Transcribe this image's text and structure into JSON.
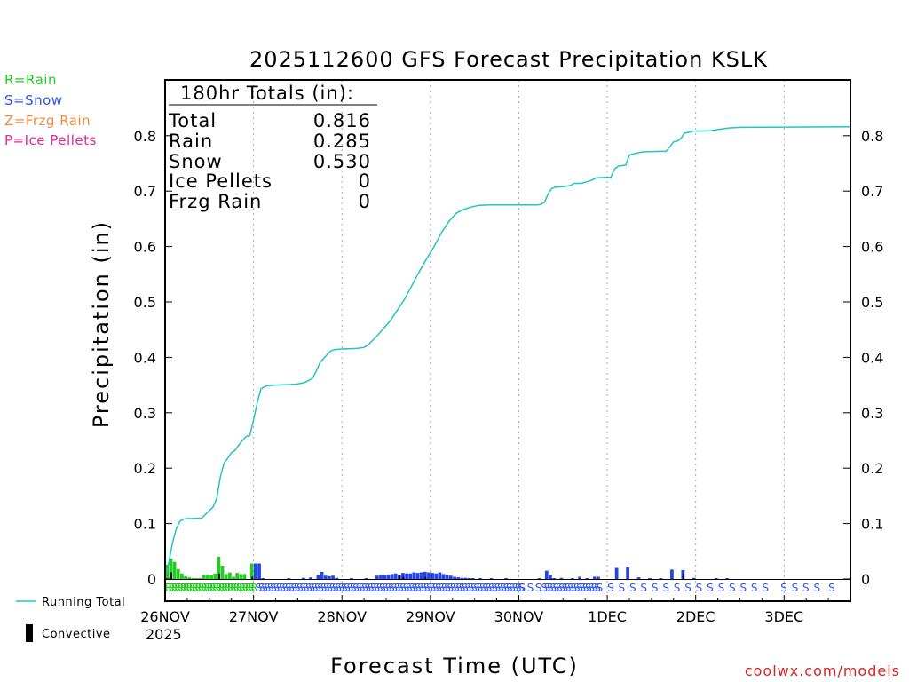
{
  "chart_data": {
    "type": "bar",
    "title": "2025112600 GFS Forecast Precipitation KSLK",
    "xlabel": "Forecast Time (UTC)",
    "ylabel": "Precipitation (in)",
    "ylim": [
      0,
      0.9
    ],
    "yticks": [
      0,
      0.1,
      0.2,
      0.3,
      0.4,
      0.5,
      0.6,
      0.7,
      0.8
    ],
    "ytick_labels": [
      "0",
      "0.1",
      "0.2",
      "0.3",
      "0.4",
      "0.5",
      "0.6",
      "0.7",
      "0.8"
    ],
    "xlim_hours": [
      0,
      186
    ],
    "xticks": [
      {
        "hour": 0,
        "label": "26NOV"
      },
      {
        "hour": 24,
        "label": "27NOV"
      },
      {
        "hour": 48,
        "label": "28NOV"
      },
      {
        "hour": 72,
        "label": "29NOV"
      },
      {
        "hour": 96,
        "label": "30NOV"
      },
      {
        "hour": 120,
        "label": "1DEC"
      },
      {
        "hour": 144,
        "label": "2DEC"
      },
      {
        "hour": 168,
        "label": "3DEC"
      }
    ],
    "year_label": "2025",
    "totals": {
      "header": "180hr Totals (in):",
      "rows": [
        {
          "label": "Total",
          "value": "0.816"
        },
        {
          "label": "Rain",
          "value": "0.285"
        },
        {
          "label": "Snow",
          "value": "0.530"
        },
        {
          "label": "Ice Pellets",
          "value": "0"
        },
        {
          "label": "Frzg Rain",
          "value": "0"
        }
      ]
    },
    "type_legend": [
      {
        "text": "R=Rain",
        "color": "#22cc22"
      },
      {
        "text": "S=Snow",
        "color": "#3355ee"
      },
      {
        "text": "Z=Frzg Rain",
        "color": "#f08c3c"
      },
      {
        "text": "P=Ice Pellets",
        "color": "#ee2299"
      }
    ],
    "series_legend": {
      "running_total": "Running Total",
      "convective": "Convective"
    },
    "colors": {
      "rain": "#22cc22",
      "snow": "#2244ee",
      "running_total": "#22c4c4",
      "convective": "#000000",
      "grid": "#aaaaaa"
    },
    "bars": [
      {
        "h": 1,
        "v": 0.026,
        "t": "R"
      },
      {
        "h": 2,
        "v": 0.037,
        "t": "R"
      },
      {
        "h": 3,
        "v": 0.031,
        "t": "R"
      },
      {
        "h": 4,
        "v": 0.018,
        "t": "R"
      },
      {
        "h": 5,
        "v": 0.01,
        "t": "R"
      },
      {
        "h": 6,
        "v": 0.005,
        "t": "R"
      },
      {
        "h": 7,
        "v": 0.003,
        "t": "R"
      },
      {
        "h": 8,
        "v": 0.001,
        "t": "R"
      },
      {
        "h": 9,
        "v": 0.001,
        "t": "R"
      },
      {
        "h": 10,
        "v": 0.001,
        "t": "R"
      },
      {
        "h": 11,
        "v": 0.007,
        "t": "R"
      },
      {
        "h": 12,
        "v": 0.008,
        "t": "R"
      },
      {
        "h": 13,
        "v": 0.007,
        "t": "R"
      },
      {
        "h": 14,
        "v": 0.01,
        "t": "R"
      },
      {
        "h": 15,
        "v": 0.04,
        "t": "R"
      },
      {
        "h": 16,
        "v": 0.024,
        "t": "R"
      },
      {
        "h": 17,
        "v": 0.009,
        "t": "R"
      },
      {
        "h": 18,
        "v": 0.012,
        "t": "R"
      },
      {
        "h": 19,
        "v": 0.004,
        "t": "R"
      },
      {
        "h": 20,
        "v": 0.011,
        "t": "R"
      },
      {
        "h": 21,
        "v": 0.009,
        "t": "R"
      },
      {
        "h": 22,
        "v": 0.009,
        "t": "R"
      },
      {
        "h": 24,
        "v": 0.028,
        "t": "R"
      },
      {
        "h": 25,
        "v": 0.028,
        "t": "S"
      },
      {
        "h": 26,
        "v": 0.028,
        "t": "S"
      },
      {
        "h": 27,
        "v": 0.001,
        "t": "S"
      },
      {
        "h": 34,
        "v": 0.001,
        "t": "S"
      },
      {
        "h": 38,
        "v": 0.002,
        "t": "S"
      },
      {
        "h": 40,
        "v": 0.003,
        "t": "S"
      },
      {
        "h": 42,
        "v": 0.008,
        "t": "S"
      },
      {
        "h": 43,
        "v": 0.013,
        "t": "S"
      },
      {
        "h": 44,
        "v": 0.006,
        "t": "S"
      },
      {
        "h": 45,
        "v": 0.005,
        "t": "S"
      },
      {
        "h": 46,
        "v": 0.006,
        "t": "S"
      },
      {
        "h": 47,
        "v": 0.002,
        "t": "S"
      },
      {
        "h": 51,
        "v": 0.001,
        "t": "S"
      },
      {
        "h": 55,
        "v": 0.001,
        "t": "S"
      },
      {
        "h": 58,
        "v": 0.006,
        "t": "S"
      },
      {
        "h": 59,
        "v": 0.007,
        "t": "S"
      },
      {
        "h": 60,
        "v": 0.007,
        "t": "S"
      },
      {
        "h": 61,
        "v": 0.008,
        "t": "S"
      },
      {
        "h": 62,
        "v": 0.009,
        "t": "S"
      },
      {
        "h": 63,
        "v": 0.01,
        "t": "S"
      },
      {
        "h": 64,
        "v": 0.008,
        "t": "S"
      },
      {
        "h": 65,
        "v": 0.011,
        "t": "S"
      },
      {
        "h": 66,
        "v": 0.01,
        "t": "S"
      },
      {
        "h": 67,
        "v": 0.01,
        "t": "S"
      },
      {
        "h": 68,
        "v": 0.012,
        "t": "S"
      },
      {
        "h": 69,
        "v": 0.011,
        "t": "S"
      },
      {
        "h": 70,
        "v": 0.012,
        "t": "S"
      },
      {
        "h": 71,
        "v": 0.013,
        "t": "S"
      },
      {
        "h": 72,
        "v": 0.012,
        "t": "S"
      },
      {
        "h": 73,
        "v": 0.011,
        "t": "S"
      },
      {
        "h": 74,
        "v": 0.01,
        "t": "S"
      },
      {
        "h": 75,
        "v": 0.012,
        "t": "S"
      },
      {
        "h": 76,
        "v": 0.009,
        "t": "S"
      },
      {
        "h": 77,
        "v": 0.007,
        "t": "S"
      },
      {
        "h": 78,
        "v": 0.006,
        "t": "S"
      },
      {
        "h": 79,
        "v": 0.004,
        "t": "S"
      },
      {
        "h": 80,
        "v": 0.003,
        "t": "S"
      },
      {
        "h": 81,
        "v": 0.002,
        "t": "S"
      },
      {
        "h": 82,
        "v": 0.002,
        "t": "S"
      },
      {
        "h": 83,
        "v": 0.001,
        "t": "S"
      },
      {
        "h": 84,
        "v": 0.001,
        "t": "S"
      },
      {
        "h": 86,
        "v": 0.001,
        "t": "S"
      },
      {
        "h": 89,
        "v": 0.001,
        "t": "S"
      },
      {
        "h": 93,
        "v": 0.001,
        "t": "S"
      },
      {
        "h": 102,
        "v": 0.001,
        "t": "S"
      },
      {
        "h": 104,
        "v": 0.015,
        "t": "S"
      },
      {
        "h": 105,
        "v": 0.007,
        "t": "S"
      },
      {
        "h": 106,
        "v": 0.001,
        "t": "S"
      },
      {
        "h": 108,
        "v": 0.002,
        "t": "S"
      },
      {
        "h": 111,
        "v": 0.001,
        "t": "S"
      },
      {
        "h": 113,
        "v": 0.004,
        "t": "S"
      },
      {
        "h": 115,
        "v": 0.001,
        "t": "S"
      },
      {
        "h": 117,
        "v": 0.004,
        "t": "S"
      },
      {
        "h": 118,
        "v": 0.004,
        "t": "S"
      },
      {
        "h": 123,
        "v": 0.02,
        "t": "S"
      },
      {
        "h": 126,
        "v": 0.021,
        "t": "S"
      },
      {
        "h": 129,
        "v": 0.003,
        "t": "S"
      },
      {
        "h": 132,
        "v": 0.001,
        "t": "S"
      },
      {
        "h": 135,
        "v": 0.001,
        "t": "S"
      },
      {
        "h": 138,
        "v": 0.017,
        "t": "S"
      },
      {
        "h": 141,
        "v": 0.016,
        "t": "S"
      },
      {
        "h": 144,
        "v": 0.002,
        "t": "S"
      },
      {
        "h": 150,
        "v": 0.001,
        "t": "S"
      },
      {
        "h": 153,
        "v": 0.001,
        "t": "S"
      }
    ],
    "convective": [
      {
        "h": 2,
        "v": 0.012
      },
      {
        "h": 15,
        "v": 0.01
      },
      {
        "h": 24,
        "v": 0.004
      },
      {
        "h": 64,
        "v": 0.006
      },
      {
        "h": 65,
        "v": 0.004
      },
      {
        "h": 71,
        "v": 0.004
      },
      {
        "h": 141,
        "v": 0.01
      }
    ],
    "running_total": [
      [
        0,
        0
      ],
      [
        1,
        0.03
      ],
      [
        2,
        0.065
      ],
      [
        3,
        0.09
      ],
      [
        4,
        0.104
      ],
      [
        5,
        0.108
      ],
      [
        6,
        0.109
      ],
      [
        7,
        0.109
      ],
      [
        10,
        0.11
      ],
      [
        11,
        0.117
      ],
      [
        13,
        0.13
      ],
      [
        14,
        0.145
      ],
      [
        15,
        0.185
      ],
      [
        16,
        0.209
      ],
      [
        17,
        0.218
      ],
      [
        18,
        0.228
      ],
      [
        19,
        0.232
      ],
      [
        20,
        0.242
      ],
      [
        21,
        0.25
      ],
      [
        22,
        0.257
      ],
      [
        23,
        0.259
      ],
      [
        24,
        0.287
      ],
      [
        25,
        0.318
      ],
      [
        26,
        0.343
      ],
      [
        27,
        0.347
      ],
      [
        28,
        0.349
      ],
      [
        30,
        0.35
      ],
      [
        34,
        0.351
      ],
      [
        36,
        0.352
      ],
      [
        38,
        0.355
      ],
      [
        40,
        0.362
      ],
      [
        41,
        0.375
      ],
      [
        42,
        0.39
      ],
      [
        43,
        0.398
      ],
      [
        44,
        0.405
      ],
      [
        45,
        0.412
      ],
      [
        46,
        0.414
      ],
      [
        48,
        0.415
      ],
      [
        52,
        0.416
      ],
      [
        54,
        0.418
      ],
      [
        55,
        0.422
      ],
      [
        57,
        0.435
      ],
      [
        59,
        0.45
      ],
      [
        61,
        0.465
      ],
      [
        63,
        0.485
      ],
      [
        65,
        0.505
      ],
      [
        67,
        0.53
      ],
      [
        69,
        0.555
      ],
      [
        71,
        0.578
      ],
      [
        73,
        0.6
      ],
      [
        75,
        0.625
      ],
      [
        77,
        0.645
      ],
      [
        79,
        0.66
      ],
      [
        81,
        0.667
      ],
      [
        83,
        0.671
      ],
      [
        85,
        0.674
      ],
      [
        88,
        0.675
      ],
      [
        95,
        0.675
      ],
      [
        101,
        0.675
      ],
      [
        102,
        0.676
      ],
      [
        103,
        0.68
      ],
      [
        104,
        0.696
      ],
      [
        105,
        0.705
      ],
      [
        106,
        0.707
      ],
      [
        108,
        0.708
      ],
      [
        110,
        0.71
      ],
      [
        111,
        0.714
      ],
      [
        113,
        0.714
      ],
      [
        114,
        0.716
      ],
      [
        116,
        0.72
      ],
      [
        117,
        0.724
      ],
      [
        121,
        0.725
      ],
      [
        122,
        0.74
      ],
      [
        123,
        0.745
      ],
      [
        125,
        0.747
      ],
      [
        126,
        0.765
      ],
      [
        127,
        0.767
      ],
      [
        129,
        0.77
      ],
      [
        130,
        0.771
      ],
      [
        136,
        0.772
      ],
      [
        137,
        0.78
      ],
      [
        138,
        0.789
      ],
      [
        139,
        0.79
      ],
      [
        140,
        0.795
      ],
      [
        141,
        0.805
      ],
      [
        142,
        0.806
      ],
      [
        143,
        0.808
      ],
      [
        148,
        0.809
      ],
      [
        150,
        0.811
      ],
      [
        153,
        0.814
      ],
      [
        156,
        0.815
      ],
      [
        186,
        0.816
      ]
    ],
    "ptype_row": [
      {
        "from": 0,
        "to": 24,
        "t": "R",
        "step": 0.8
      },
      {
        "from": 24.5,
        "to": 96,
        "t": "S",
        "step": 0.8
      },
      {
        "from": 96,
        "to": 102,
        "t": "S",
        "step": 2.2
      },
      {
        "from": 102,
        "to": 117,
        "t": "S",
        "step": 0.8
      },
      {
        "from": 117,
        "to": 162,
        "t": "S",
        "step": 3
      },
      {
        "from": 167,
        "to": 176,
        "t": "S",
        "step": 3
      },
      {
        "from": 180,
        "to": 181,
        "t": "S",
        "step": 3
      }
    ]
  },
  "credit": "coolwx.com/models"
}
